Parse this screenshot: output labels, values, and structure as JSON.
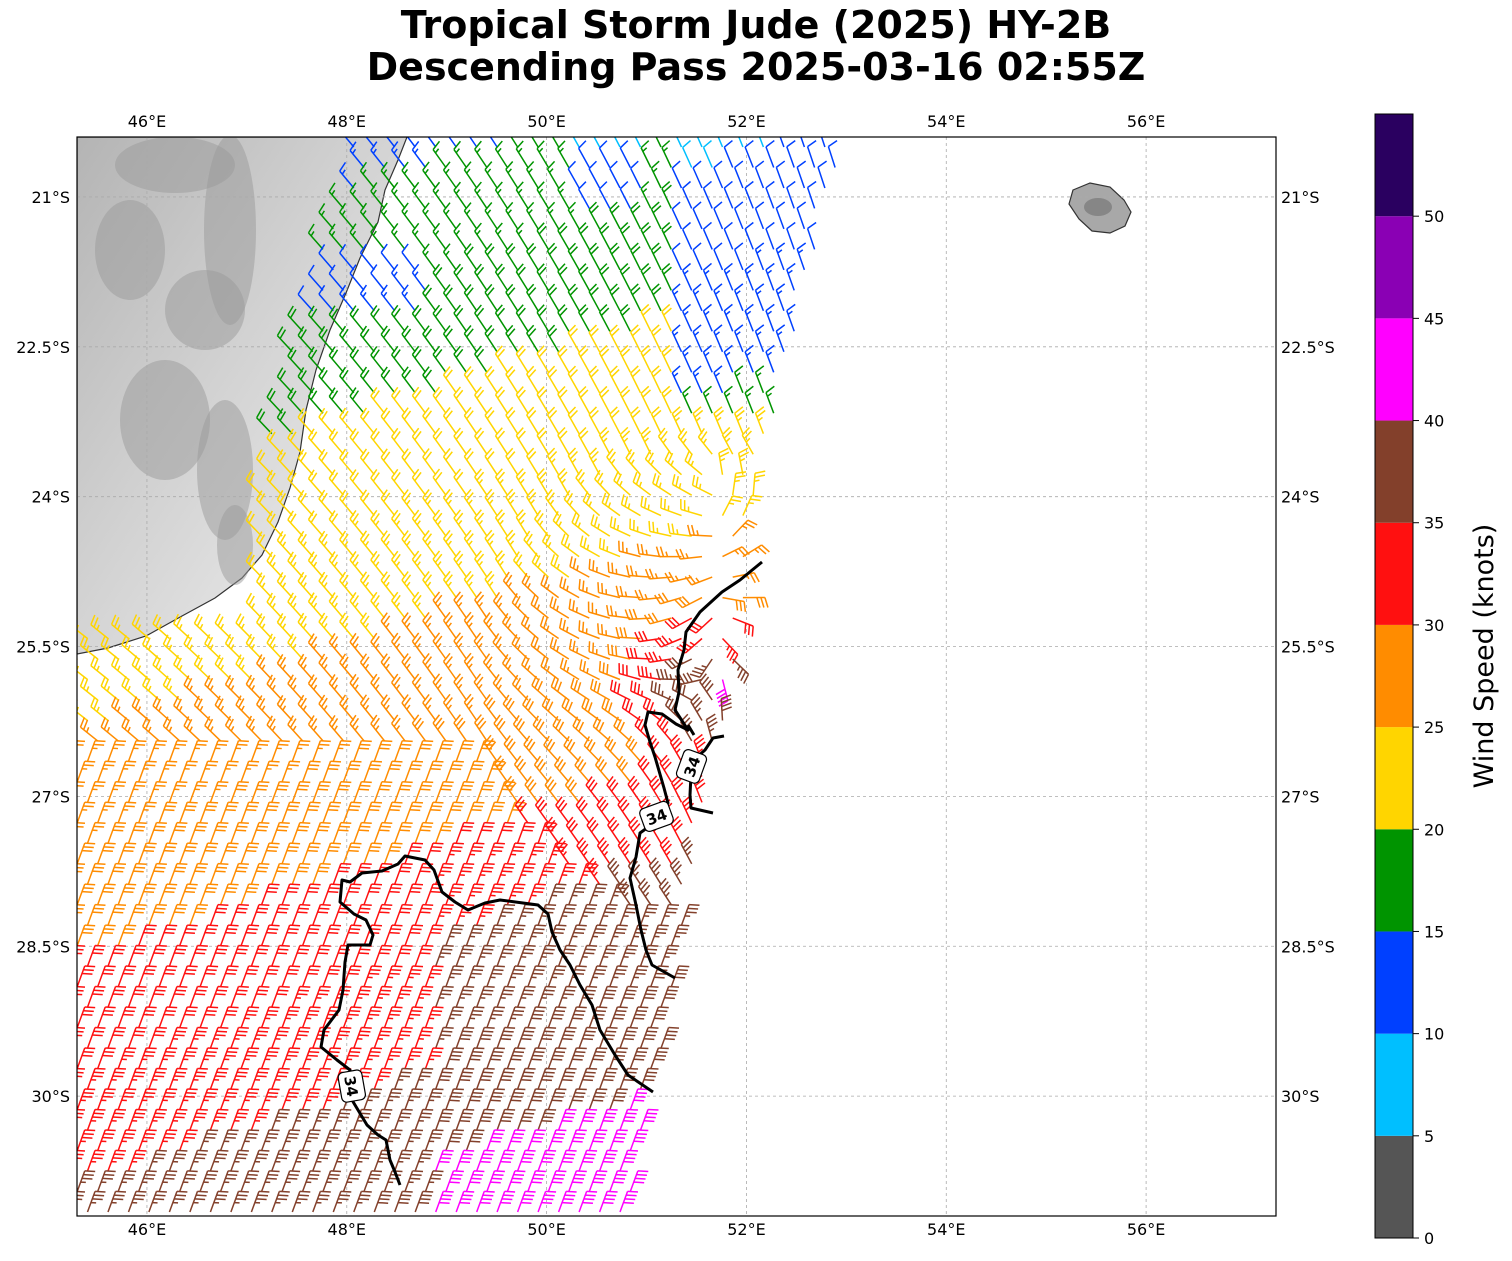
{
  "title": {
    "line1": "Tropical Storm Jude (2025) HY-2B",
    "line2": "Descending Pass 2025-03-16 02:55Z"
  },
  "map": {
    "lon_range": [
      45.3,
      57.3
    ],
    "lat_range": [
      -20.4,
      -31.2
    ],
    "lon_ticks": [
      {
        "value": 46,
        "label": "46°E"
      },
      {
        "value": 48,
        "label": "48°E"
      },
      {
        "value": 50,
        "label": "50°E"
      },
      {
        "value": 52,
        "label": "52°E"
      },
      {
        "value": 54,
        "label": "54°E"
      },
      {
        "value": 56,
        "label": "56°E"
      }
    ],
    "lat_ticks": [
      {
        "value": -21,
        "label": "21°S"
      },
      {
        "value": -22.5,
        "label": "22.5°S"
      },
      {
        "value": -24,
        "label": "24°S"
      },
      {
        "value": -25.5,
        "label": "25.5°S"
      },
      {
        "value": -27,
        "label": "27°S"
      },
      {
        "value": -28.5,
        "label": "28.5°S"
      },
      {
        "value": -30,
        "label": "30°S"
      }
    ],
    "gridlines": true,
    "land_features": [
      "Madagascar",
      "Réunion"
    ],
    "contour": {
      "value_knots": 34,
      "label": "34",
      "label_positions": [
        {
          "lon": 51.45,
          "lat": -26.7,
          "rotation": -70
        },
        {
          "lon": 51.1,
          "lat": -27.2,
          "rotation": -20
        },
        {
          "lon": 48.05,
          "lat": -29.9,
          "rotation": 80
        }
      ]
    }
  },
  "colorbar": {
    "label": "Wind Speed (knots)",
    "ticks": [
      {
        "value": 0,
        "label": "0"
      },
      {
        "value": 5,
        "label": "5"
      },
      {
        "value": 10,
        "label": "10"
      },
      {
        "value": 15,
        "label": "15"
      },
      {
        "value": 20,
        "label": "20"
      },
      {
        "value": 25,
        "label": "25"
      },
      {
        "value": 30,
        "label": "30"
      },
      {
        "value": 35,
        "label": "35"
      },
      {
        "value": 40,
        "label": "40"
      },
      {
        "value": 45,
        "label": "45"
      },
      {
        "value": 50,
        "label": "50"
      }
    ],
    "range": [
      0,
      55
    ],
    "bins": [
      {
        "min": 0,
        "max": 5,
        "color": "#555555"
      },
      {
        "min": 5,
        "max": 10,
        "color": "#00bfff"
      },
      {
        "min": 10,
        "max": 15,
        "color": "#0040ff"
      },
      {
        "min": 15,
        "max": 20,
        "color": "#009400"
      },
      {
        "min": 20,
        "max": 25,
        "color": "#ffd500"
      },
      {
        "min": 25,
        "max": 30,
        "color": "#ff8c00"
      },
      {
        "min": 30,
        "max": 35,
        "color": "#ff1010"
      },
      {
        "min": 35,
        "max": 40,
        "color": "#83402b"
      },
      {
        "min": 40,
        "max": 45,
        "color": "#ff00ff"
      },
      {
        "min": 45,
        "max": 50,
        "color": "#8a00b4"
      },
      {
        "min": 50,
        "max": 55,
        "color": "#2a0060"
      }
    ]
  }
}
